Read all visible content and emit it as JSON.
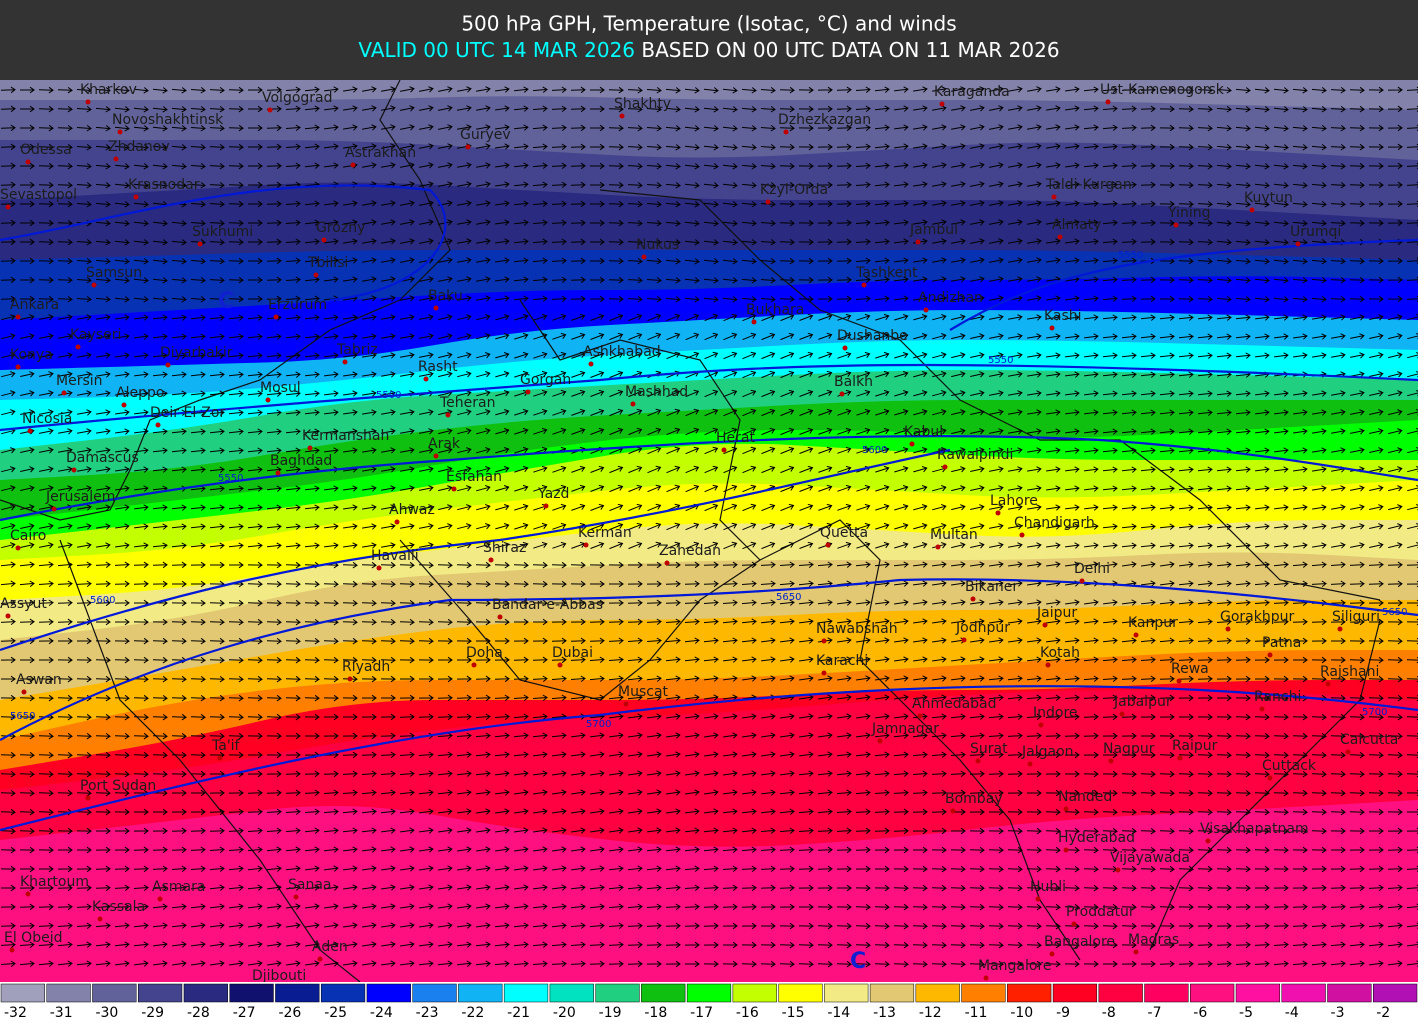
{
  "header": {
    "title": "500 hPa GPH, Temperature (Isotac, °C) and winds",
    "valid": "VALID 00 UTC 14 MAR 2026",
    "based": " BASED ON 00 UTC DATA ON 11 MAR 2026"
  },
  "cities": [
    "Kharkov",
    "Volgograd",
    "Novoshakhtinsk",
    "Odessa",
    "Zhdanov",
    "Astrakhan",
    "Guryev",
    "Shakhty",
    "Dzhezkazgan",
    "Karaganda",
    "Ust-Kamenogorsk",
    "Krasnodar",
    "Sevastopol",
    "Kzyl-Orda",
    "Taldi-Kurgan",
    "Yining",
    "Kuytun",
    "Urumqi",
    "Sukhumi",
    "Grozny",
    "Nukus",
    "Jambul",
    "Almaty",
    "Samsun",
    "Tbilisi",
    "Tashkent",
    "Ankara",
    "Erzurum",
    "Baku",
    "Bukhara",
    "Andizhan",
    "Kashi",
    "Kayseri",
    "Dushanbe",
    "Konya",
    "Diyarbakir",
    "Tabriz",
    "Ashkhabad",
    "Rasht",
    "Mersin",
    "Aleppo",
    "Mosul",
    "Gorgan",
    "Mashhad",
    "Balkh",
    "Deir El-Zor",
    "Nicosia",
    "Teheran",
    "Kermanshah",
    "Arak",
    "Herat",
    "Kabul",
    "Damascus",
    "Baghdad",
    "Rawalpindi",
    "Esfahan",
    "Jerusalem",
    "Yazd",
    "Lahore",
    "Ahwaz",
    "Chandigarh",
    "Cairo",
    "Kerman",
    "Quetta",
    "Multan",
    "Shiraz",
    "Havalli",
    "Zahedan",
    "Delhi",
    "Bikaner",
    "Assyut",
    "Bandar-e-Abbas",
    "Jaipur",
    "Kanpur",
    "Gorakhpur",
    "Siliguri",
    "Nawabshah",
    "Jodhpur",
    "Patna",
    "Doha",
    "Dubai",
    "Karachi",
    "Kotah",
    "Rewa",
    "Riyadh",
    "Rajshahi",
    "Aswan",
    "Muscat",
    "Ahmedabad",
    "Jabalpur",
    "Ranchi",
    "Indore",
    "Jamnagar",
    "Ta'if",
    "Calcutta",
    "Surat",
    "Jalgaon",
    "Nagpur",
    "Raipur",
    "Cuttack",
    "Port Sudan",
    "Bombay",
    "Nanded",
    "Visakhapatnam",
    "Hyderabad",
    "Vijayawada",
    "Khartoum",
    "Asmara",
    "Sanaa",
    "Hubli",
    "Kassala",
    "Proddatur",
    "El Obeid",
    "Aden",
    "Bangalore",
    "Madras",
    "Djibouti",
    "Mangalore"
  ],
  "contour_labels": [
    5500,
    5550,
    5550,
    5550,
    5600,
    5600,
    5650,
    5650,
    5650,
    5700,
    5700
  ],
  "pressure_centers": [
    "C",
    "C"
  ],
  "legend": [
    {
      "value": -32,
      "color": "#a0a0bc"
    },
    {
      "value": -31,
      "color": "#8282aa"
    },
    {
      "value": -30,
      "color": "#62629a"
    },
    {
      "value": -29,
      "color": "#44448e"
    },
    {
      "value": -28,
      "color": "#2a2a80"
    },
    {
      "value": -27,
      "color": "#10106e"
    },
    {
      "value": -26,
      "color": "#0a1c92"
    },
    {
      "value": -25,
      "color": "#0832b4"
    },
    {
      "value": -24,
      "color": "#0000ff"
    },
    {
      "value": -23,
      "color": "#1a80f0"
    },
    {
      "value": -22,
      "color": "#10b4f4"
    },
    {
      "value": -21,
      "color": "#00ffff"
    },
    {
      "value": -20,
      "color": "#00e2c0"
    },
    {
      "value": -19,
      "color": "#20d080"
    },
    {
      "value": -18,
      "color": "#10c010"
    },
    {
      "value": -17,
      "color": "#00ff00"
    },
    {
      "value": -16,
      "color": "#c4ff00"
    },
    {
      "value": -15,
      "color": "#ffff00"
    },
    {
      "value": -14,
      "color": "#f2ea84"
    },
    {
      "value": -13,
      "color": "#e2c872"
    },
    {
      "value": -12,
      "color": "#ffb800"
    },
    {
      "value": -11,
      "color": "#ff8000"
    },
    {
      "value": -10,
      "color": "#ff2000"
    },
    {
      "value": -9,
      "color": "#ff0022"
    },
    {
      "value": -8,
      "color": "#ff0040"
    },
    {
      "value": -7,
      "color": "#ff0060"
    },
    {
      "value": -6,
      "color": "#ff1080"
    },
    {
      "value": -5,
      "color": "#ff10a0"
    },
    {
      "value": -4,
      "color": "#f010b0"
    },
    {
      "value": -3,
      "color": "#d010a0"
    },
    {
      "value": -2,
      "color": "#b010b4"
    }
  ]
}
